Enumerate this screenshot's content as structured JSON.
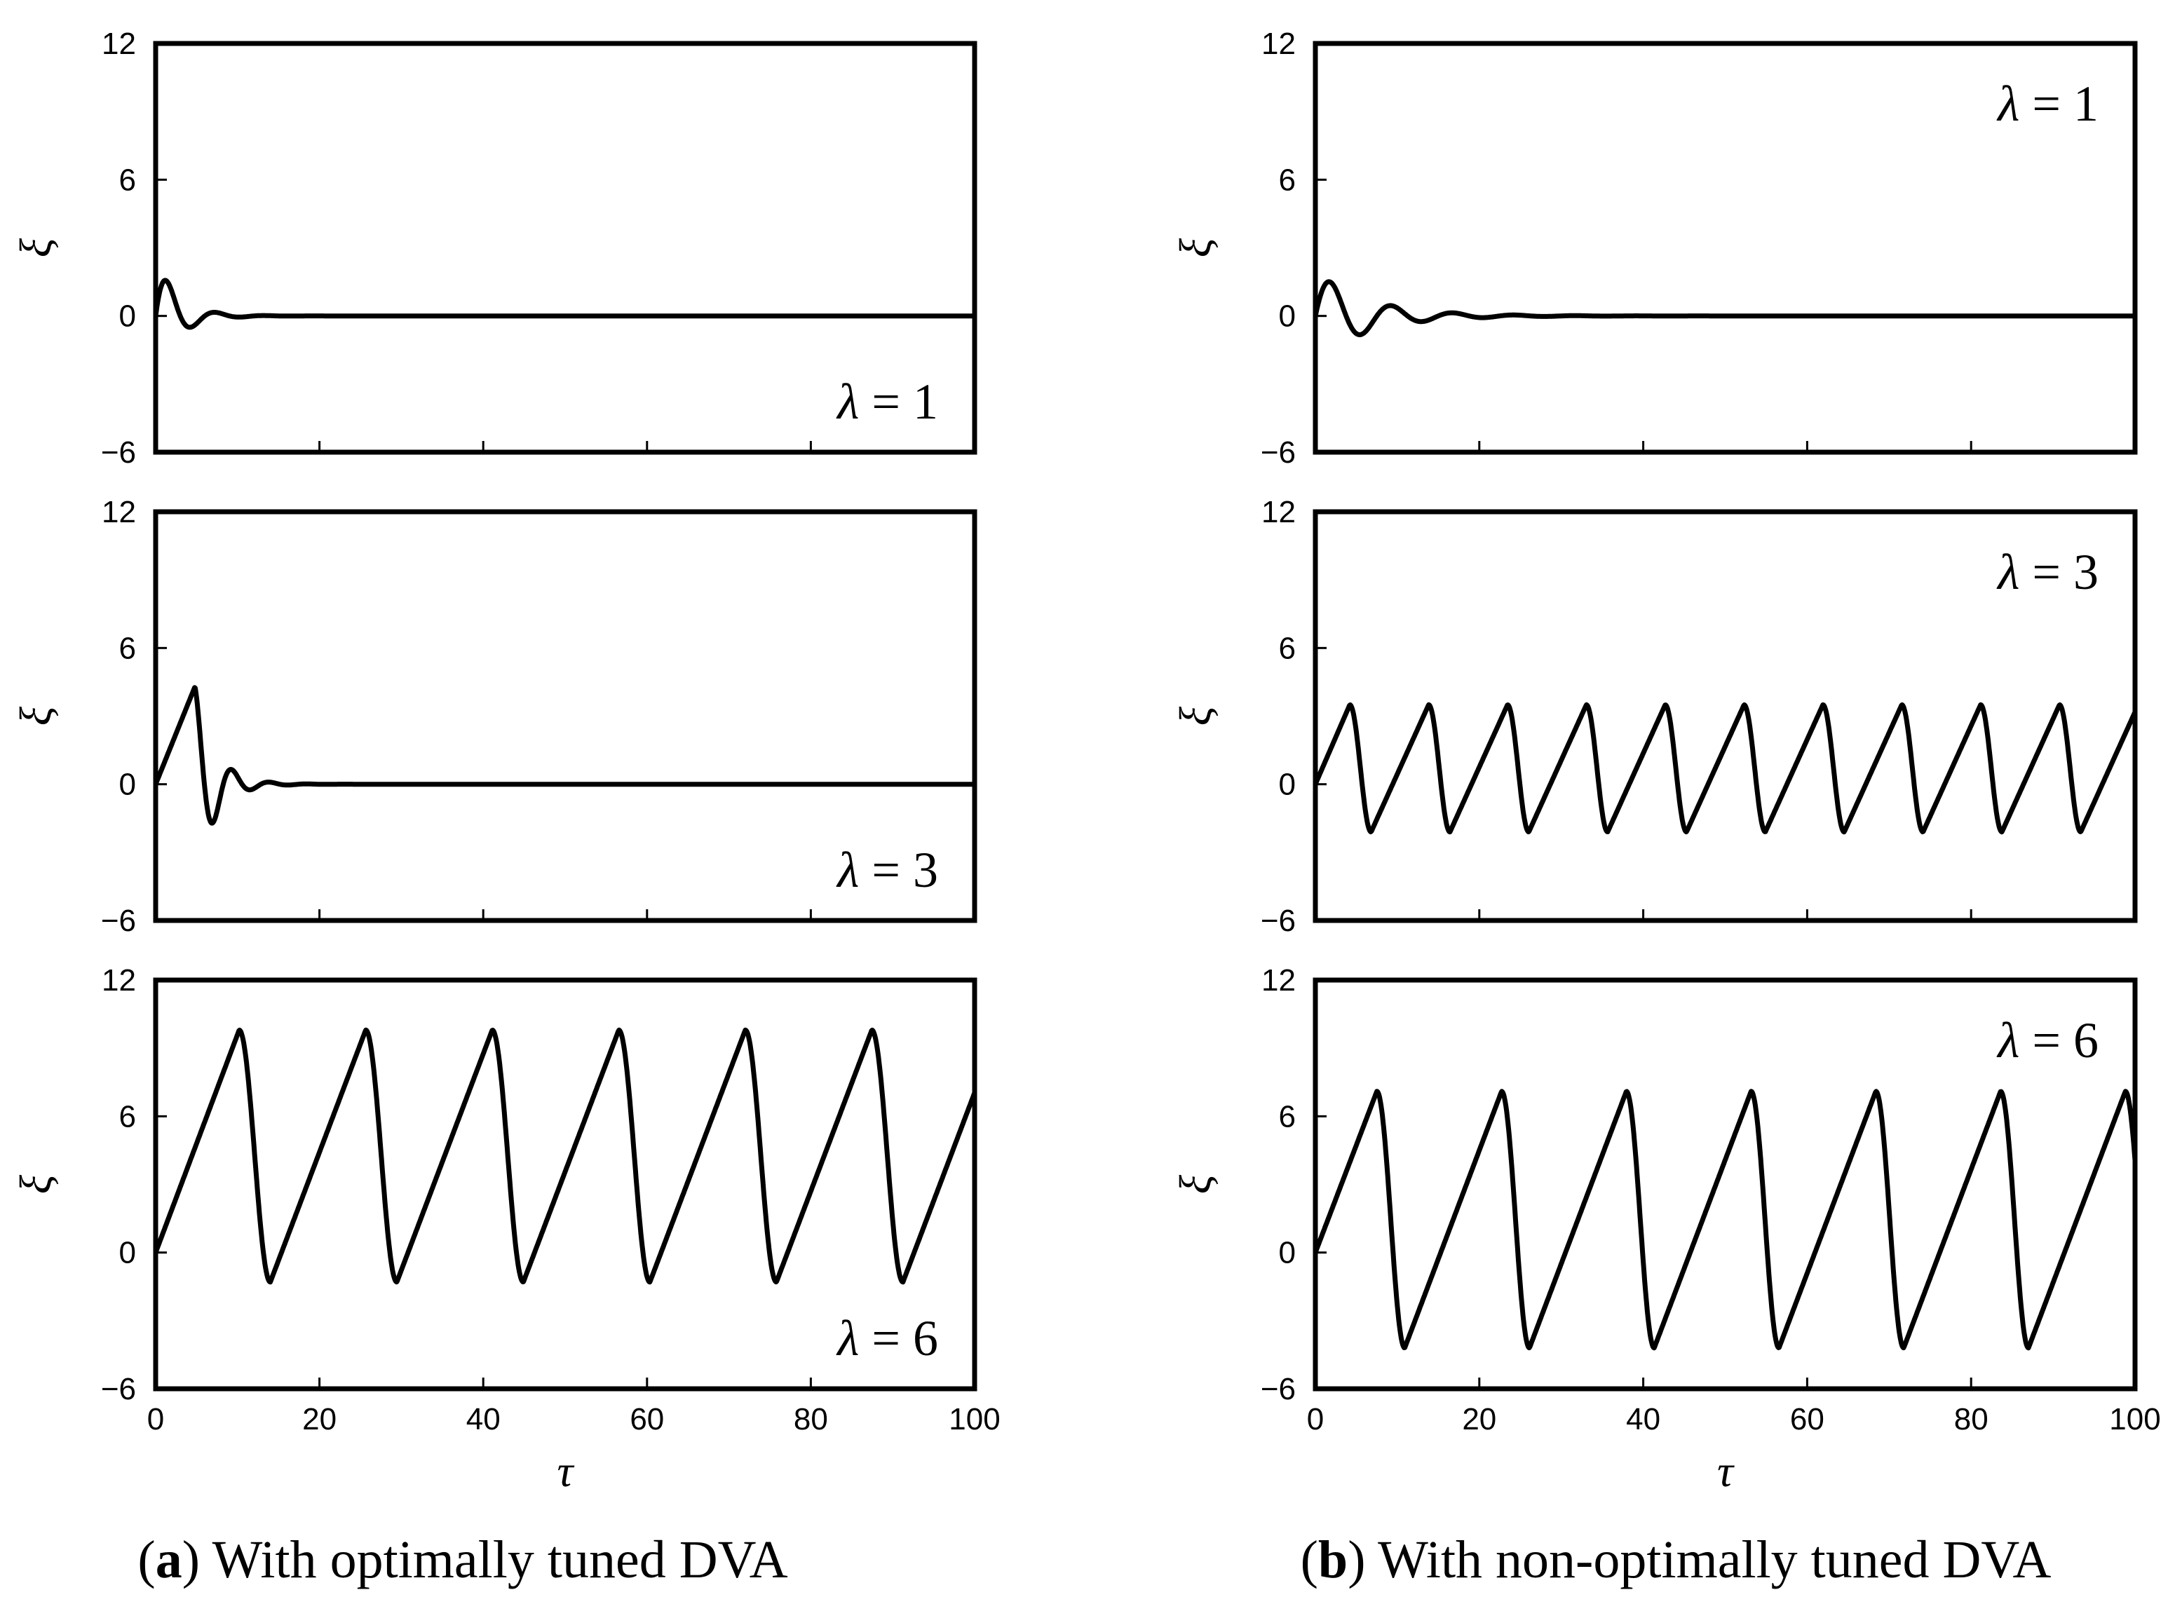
{
  "figure": {
    "captions": [
      {
        "letter": "a",
        "text": "With optimally tuned DVA"
      },
      {
        "letter": "b",
        "text": "With non-optimally tuned DVA"
      }
    ]
  },
  "chart_data": [
    {
      "type": "line",
      "column": "a",
      "row": 0,
      "lambda_label": "λ = 1",
      "xlabel": "τ",
      "ylabel": "ξ",
      "xlim": [
        0,
        100
      ],
      "ylim": [
        -6,
        12
      ],
      "xticks": [
        0,
        20,
        40,
        60,
        80,
        100
      ],
      "yticks": [
        -6,
        0,
        6,
        12
      ],
      "yticklabels": [
        "−6",
        "0",
        "6",
        "12"
      ],
      "series": [
        {
          "name": "ξ(τ)",
          "kind": "damped",
          "amplitude": 2.6,
          "period": 6.0,
          "decay": 0.38,
          "offset": 0,
          "description": "damped oscillation, peak ≈1.5 at τ≈2, settles to 0 by τ≈15"
        }
      ]
    },
    {
      "type": "line",
      "column": "a",
      "row": 1,
      "lambda_label": "λ = 3",
      "xlabel": "τ",
      "ylabel": "ξ",
      "xlim": [
        0,
        100
      ],
      "ylim": [
        -6,
        12
      ],
      "xticks": [
        0,
        20,
        40,
        60,
        80,
        100
      ],
      "yticks": [
        -6,
        0,
        6,
        12
      ],
      "yticklabels": [
        "−6",
        "0",
        "6",
        "12"
      ],
      "series": [
        {
          "name": "ξ(τ)",
          "kind": "ramp_decay",
          "peak_time": 4.8,
          "peak": 4.3,
          "amplitude": 2.8,
          "period": 4.6,
          "decay": 0.42,
          "offset": 0,
          "description": "rises to peak ≈4.3 at τ≈5, damped oscillation, settles to 0 by τ≈20"
        }
      ]
    },
    {
      "type": "line",
      "column": "a",
      "row": 2,
      "lambda_label": "λ = 6",
      "xlabel": "τ",
      "ylabel": "ξ",
      "xlim": [
        0,
        100
      ],
      "ylim": [
        -6,
        12
      ],
      "xticks": [
        0,
        20,
        40,
        60,
        80,
        100
      ],
      "yticks": [
        -6,
        0,
        6,
        12
      ],
      "yticklabels": [
        "−6",
        "0",
        "6",
        "12"
      ],
      "series": [
        {
          "name": "ξ(τ)",
          "kind": "sawtooth",
          "start": 0,
          "first_peak_time": 10.2,
          "period": 15.45,
          "peak": 9.8,
          "trough": -1.3,
          "fall_time": 3.8,
          "description": "periodic sawtooth, peaks ≈9.8 at τ≈10,25,41,56,71,87; troughs ≈−1.3"
        }
      ]
    },
    {
      "type": "line",
      "column": "b",
      "row": 0,
      "lambda_label": "λ = 1",
      "xlabel": "τ",
      "ylabel": "ξ",
      "xlim": [
        0,
        100
      ],
      "ylim": [
        -6,
        12
      ],
      "xticks": [
        0,
        20,
        40,
        60,
        80,
        100
      ],
      "yticks": [
        -6,
        0,
        6,
        12
      ],
      "yticklabels": [
        "−6",
        "0",
        "6",
        "12"
      ],
      "series": [
        {
          "name": "ξ(τ)",
          "kind": "damped",
          "amplitude": 2.0,
          "period": 7.5,
          "decay": 0.16,
          "offset": 0,
          "description": "lightly damped oscillation, peak ≈1.5 at τ≈2, settles to 0 by τ≈28"
        }
      ]
    },
    {
      "type": "line",
      "column": "b",
      "row": 1,
      "lambda_label": "λ = 3",
      "xlabel": "τ",
      "ylabel": "ξ",
      "xlim": [
        0,
        100
      ],
      "ylim": [
        -6,
        12
      ],
      "xticks": [
        0,
        20,
        40,
        60,
        80,
        100
      ],
      "yticks": [
        -6,
        0,
        6,
        12
      ],
      "yticklabels": [
        "−6",
        "0",
        "6",
        "12"
      ],
      "series": [
        {
          "name": "ξ(τ)",
          "kind": "sawtooth",
          "start": 0,
          "first_peak_time": 4.2,
          "period": 9.62,
          "peak": 3.5,
          "trough": -2.1,
          "fall_time": 2.6,
          "description": "sustained periodic oscillation, peaks ≈3.5, troughs ≈−2.1"
        }
      ]
    },
    {
      "type": "line",
      "column": "b",
      "row": 2,
      "lambda_label": "λ = 6",
      "xlabel": "τ",
      "ylabel": "ξ",
      "xlim": [
        0,
        100
      ],
      "ylim": [
        -6,
        12
      ],
      "xticks": [
        0,
        20,
        40,
        60,
        80,
        100
      ],
      "yticks": [
        -6,
        0,
        6,
        12
      ],
      "yticklabels": [
        "−6",
        "0",
        "6",
        "12"
      ],
      "series": [
        {
          "name": "ξ(τ)",
          "kind": "sawtooth",
          "start": 0,
          "first_peak_time": 7.5,
          "period": 15.22,
          "peak": 7.1,
          "trough": -4.2,
          "fall_time": 3.4,
          "description": "periodic sawtooth, peaks ≈7.1 at τ≈7.5,23,38,53,68,83,98; troughs ≈−4.2"
        }
      ]
    }
  ]
}
